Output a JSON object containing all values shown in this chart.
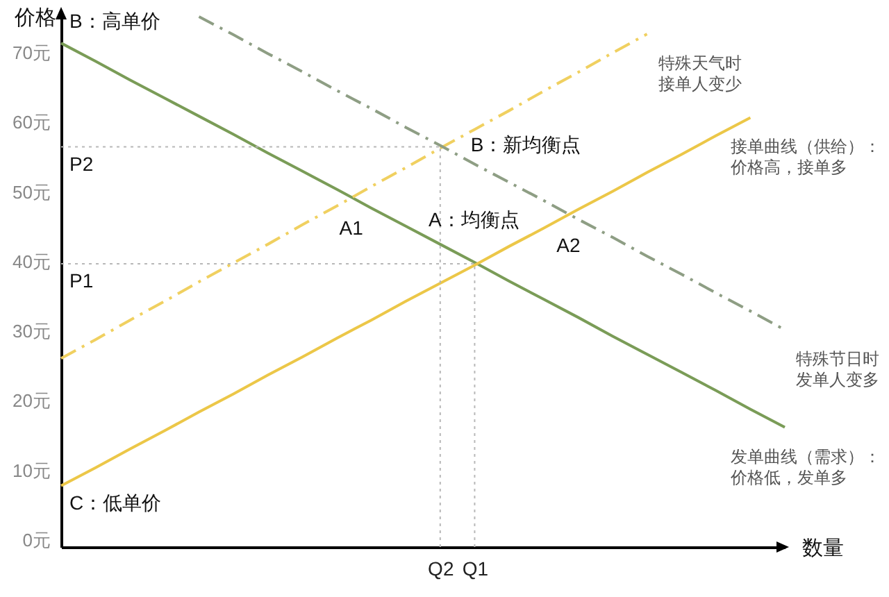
{
  "chart_data": {
    "type": "line",
    "xlabel": "数量",
    "ylabel": "价格",
    "categories": [
      null,
      null,
      null,
      null,
      null,
      null,
      null,
      null,
      null,
      null,
      null,
      "Q2",
      "Q1",
      null,
      null,
      null,
      null,
      null,
      null,
      null,
      null,
      null
    ],
    "ylim": [
      -1,
      76
    ],
    "yticks": [
      {
        "value": 0,
        "label": "0元"
      },
      {
        "value": 10,
        "label": "10元"
      },
      {
        "value": 20,
        "label": "20元"
      },
      {
        "value": 30,
        "label": "30元"
      },
      {
        "value": 40,
        "label": "40元"
      },
      {
        "value": 50,
        "label": "50元"
      },
      {
        "value": 60,
        "label": "60元"
      },
      {
        "value": 70,
        "label": "70元"
      }
    ],
    "series": [
      {
        "name": "发单曲线（需求）：价格低，发单多",
        "color": "#7a9c57",
        "line_style": "solid",
        "values": [
          71.4,
          68.8,
          66.1,
          63.5,
          60.9,
          58.3,
          55.6,
          53.0,
          50.4,
          47.7,
          45.1,
          42.5,
          39.9,
          37.2,
          34.6,
          32.0,
          29.3,
          26.7,
          24.1,
          21.5,
          18.8,
          16.2
        ]
      },
      {
        "name": "接单曲线（供给）：价格高，接单多",
        "color": "#ecc748",
        "line_style": "solid",
        "values": [
          7.8,
          10.4,
          13.1,
          15.7,
          18.4,
          21.0,
          23.7,
          26.3,
          29.0,
          31.6,
          34.3,
          36.9,
          39.5,
          42.2,
          44.8,
          47.5,
          50.1,
          52.8,
          55.4,
          58.1,
          60.7,
          null
        ]
      },
      {
        "name": "特殊天气时接单人变少",
        "color": "#f0d060",
        "line_style": "dashed",
        "values": [
          26.1,
          28.8,
          31.6,
          34.3,
          37.1,
          39.8,
          42.5,
          45.3,
          48.0,
          50.8,
          53.5,
          56.3,
          59.0,
          61.7,
          64.5,
          67.2,
          70.0,
          72.7,
          null,
          null,
          null,
          null
        ]
      },
      {
        "name": "特殊节日时发单人变多",
        "color": "#8e9e84",
        "line_style": "dashed",
        "values": [
          null,
          null,
          null,
          null,
          75.2,
          72.6,
          69.9,
          67.3,
          64.6,
          62.0,
          59.3,
          56.7,
          54.0,
          51.4,
          48.8,
          46.1,
          43.5,
          40.8,
          38.2,
          35.5,
          32.9,
          30.2
        ]
      }
    ],
    "ref_lines": [
      {
        "axis": "y",
        "value": 56.5,
        "label": "P2",
        "color": "#b8b8b8",
        "line_style": "dotted"
      },
      {
        "axis": "x",
        "value": "Q2",
        "label": null,
        "color": "#b8b8b8",
        "line_style": "dotted"
      },
      {
        "axis": "y",
        "value": 39.7,
        "label": "P1",
        "color": "#b8b8b8",
        "line_style": "dotted"
      },
      {
        "axis": "x",
        "value": "Q1",
        "label": null,
        "color": "#b8b8b8",
        "line_style": "dotted"
      }
    ],
    "annotations": [
      "B：高单价",
      "A1",
      {
        "text": "B：新均衡点",
        "x": "Q2",
        "y": 56.5
      },
      "A2",
      {
        "text": "A：均衡点",
        "x": "Q1",
        "y": 39.7
      },
      "C：低单价"
    ]
  }
}
